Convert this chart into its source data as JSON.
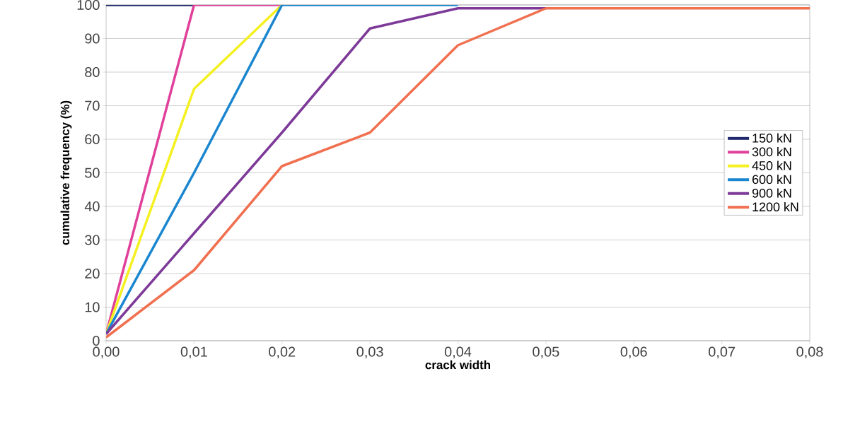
{
  "chart_data": {
    "type": "line",
    "xlabel": "crack width",
    "ylabel": "cumulative frequency (%)",
    "x": [
      0,
      0.01,
      0.02,
      0.03,
      0.04,
      0.05,
      0.06,
      0.07,
      0.08
    ],
    "series": [
      {
        "name": "150 kN",
        "color": "#1f2a6e",
        "values": [
          100,
          100,
          null,
          null,
          null,
          null,
          null,
          null,
          null
        ]
      },
      {
        "name": "300 kN",
        "color": "#e0409a",
        "values": [
          2,
          100,
          100,
          null,
          null,
          null,
          null,
          null,
          null
        ]
      },
      {
        "name": "450 kN",
        "color": "#f5f020",
        "values": [
          2,
          75,
          100,
          null,
          null,
          null,
          null,
          null,
          null
        ]
      },
      {
        "name": "600 kN",
        "color": "#1a86d0",
        "values": [
          2,
          50,
          100,
          100,
          100,
          null,
          null,
          null,
          null
        ]
      },
      {
        "name": "900 kN",
        "color": "#7d3a98",
        "values": [
          2,
          32,
          62,
          93,
          99,
          99,
          null,
          null,
          null
        ]
      },
      {
        "name": "1200 kN",
        "color": "#f07050",
        "values": [
          1,
          21,
          52,
          62,
          88,
          99,
          99,
          99,
          99
        ]
      }
    ],
    "xlim": [
      0,
      0.08
    ],
    "xticks": [
      {
        "value": 0,
        "label": "0,00"
      },
      {
        "value": 0.01,
        "label": "0,01"
      },
      {
        "value": 0.02,
        "label": "0,02"
      },
      {
        "value": 0.03,
        "label": "0,03"
      },
      {
        "value": 0.04,
        "label": "0,04"
      },
      {
        "value": 0.05,
        "label": "0,05"
      },
      {
        "value": 0.06,
        "label": "0,06"
      },
      {
        "value": 0.07,
        "label": "0,07"
      },
      {
        "value": 0.08,
        "label": "0,08"
      }
    ],
    "ylim": [
      0,
      100
    ],
    "yticks": [
      0,
      10,
      20,
      30,
      40,
      50,
      60,
      70,
      80,
      90,
      100
    ],
    "grid": "y",
    "legend": "right",
    "marker": "none",
    "line_style": "solid"
  }
}
